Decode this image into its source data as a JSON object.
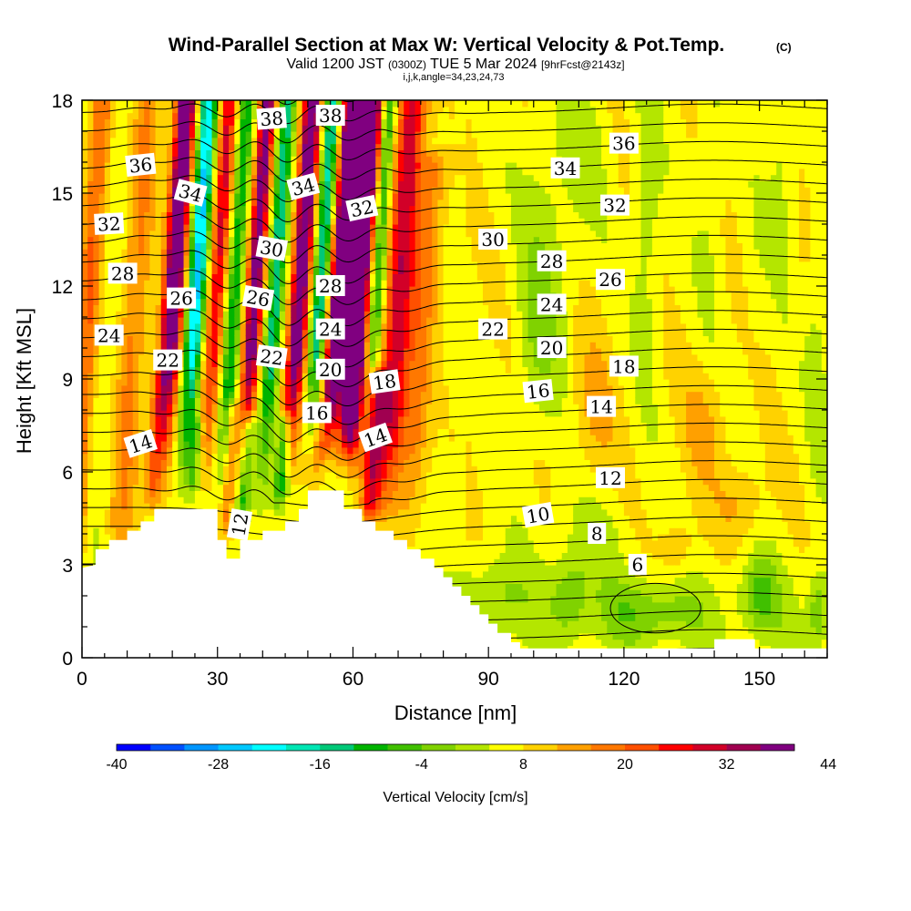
{
  "header": {
    "title": "Wind-Parallel Section at Max W: Vertical Velocity & Pot.Temp.",
    "title_mark": "(C)",
    "valid_prefix": "Valid 1200 JST",
    "valid_utc": "(0300Z)",
    "valid_date": "TUE 5 Mar 2024",
    "forecast": "[9hrFcst@2143z]",
    "indices": "i,j,k,angle=34,23,24,73"
  },
  "chart_data": {
    "type": "heatmap",
    "xlabel": "Distance [nm]",
    "ylabel": "Height [Kft MSL]",
    "xlim": [
      0,
      165
    ],
    "ylim": [
      0,
      18
    ],
    "x_ticks": [
      0,
      30,
      60,
      90,
      120,
      150
    ],
    "y_ticks": [
      0,
      3,
      6,
      9,
      12,
      15,
      18
    ],
    "colorbar": {
      "label": "Vertical Velocity [cm/s]",
      "tick_labels": [
        "-40",
        "-28",
        "-16",
        "-4",
        "8",
        "20",
        "32",
        "44"
      ],
      "tick_values": [
        -40,
        -28,
        -16,
        -4,
        8,
        20,
        32,
        44
      ],
      "min": -40,
      "step": 4,
      "colors": [
        "#0000ff",
        "#0050ff",
        "#0096ff",
        "#00c8ff",
        "#00ffff",
        "#00e6b4",
        "#00c878",
        "#00b400",
        "#40c000",
        "#80d200",
        "#b4e600",
        "#ffff00",
        "#ffd200",
        "#ffa000",
        "#ff7800",
        "#ff5000",
        "#ff0000",
        "#d20028",
        "#a00050",
        "#800080"
      ]
    },
    "terrain": [
      [
        0,
        2.9
      ],
      [
        3,
        3.0
      ],
      [
        3,
        3.5
      ],
      [
        6,
        3.5
      ],
      [
        6,
        3.8
      ],
      [
        10,
        3.8
      ],
      [
        10,
        4.1
      ],
      [
        13,
        4.1
      ],
      [
        13,
        4.4
      ],
      [
        16,
        4.4
      ],
      [
        16,
        4.8
      ],
      [
        30,
        4.8
      ],
      [
        30,
        3.8
      ],
      [
        32,
        3.8
      ],
      [
        32,
        3.2
      ],
      [
        35,
        3.2
      ],
      [
        35,
        3.8
      ],
      [
        40,
        3.8
      ],
      [
        40,
        4.1
      ],
      [
        45,
        4.1
      ],
      [
        45,
        4.4
      ],
      [
        48,
        4.4
      ],
      [
        48,
        4.8
      ],
      [
        50,
        4.8
      ],
      [
        50,
        5.4
      ],
      [
        58,
        5.4
      ],
      [
        58,
        4.8
      ],
      [
        62,
        4.8
      ],
      [
        62,
        4.4
      ],
      [
        65,
        4.4
      ],
      [
        65,
        4.1
      ],
      [
        69,
        4.1
      ],
      [
        69,
        3.8
      ],
      [
        72,
        3.8
      ],
      [
        72,
        3.5
      ],
      [
        75,
        3.5
      ],
      [
        75,
        3.2
      ],
      [
        78,
        3.2
      ],
      [
        78,
        2.9
      ],
      [
        80,
        2.9
      ],
      [
        80,
        2.6
      ],
      [
        82,
        2.6
      ],
      [
        82,
        2.3
      ],
      [
        84,
        2.3
      ],
      [
        84,
        2.0
      ],
      [
        86,
        2.0
      ],
      [
        86,
        1.7
      ],
      [
        88,
        1.7
      ],
      [
        88,
        1.4
      ],
      [
        90,
        1.4
      ],
      [
        90,
        1.1
      ],
      [
        92,
        1.1
      ],
      [
        92,
        0.8
      ],
      [
        95,
        0.8
      ],
      [
        95,
        0.5
      ],
      [
        97,
        0.5
      ],
      [
        97,
        0.3
      ],
      [
        140,
        0.3
      ],
      [
        140,
        0.6
      ],
      [
        149,
        0.6
      ],
      [
        149,
        0.3
      ],
      [
        165,
        0.3
      ]
    ],
    "updrafts": [
      {
        "x": 1.0,
        "w": 14,
        "hw": 2.5,
        "y0": 2.2,
        "y1": 18
      },
      {
        "x": 5.0,
        "w": -3,
        "hw": 3.5,
        "y0": 2.0,
        "y1": 18
      },
      {
        "x": 11.0,
        "w": 10,
        "hw": 3.0,
        "y0": 2.8,
        "y1": 18
      },
      {
        "x": 19.5,
        "w": 40,
        "hw": 2.2,
        "y0": 4.6,
        "y1": 18,
        "ramp": 6.0
      },
      {
        "x": 24.5,
        "w": -32,
        "hw": 2.0,
        "y0": 5.0,
        "y1": 18,
        "ramp": 5.0
      },
      {
        "x": 29.0,
        "w": 22,
        "hw": 1.8,
        "y0": 5.0,
        "y1": 18,
        "ramp": 5.0
      },
      {
        "x": 33.0,
        "w": -18,
        "hw": 1.6,
        "y0": 3.4,
        "y1": 18,
        "ramp": 4.0
      },
      {
        "x": 37.5,
        "w": 34,
        "hw": 1.8,
        "y0": 5.0,
        "y1": 18,
        "ramp": 5.0
      },
      {
        "x": 42.0,
        "w": -22,
        "hw": 1.8,
        "y0": 4.2,
        "y1": 18,
        "ramp": 5.0
      },
      {
        "x": 47.5,
        "w": 38,
        "hw": 2.0,
        "y0": 5.5,
        "y1": 18,
        "ramp": 4.5
      },
      {
        "x": 52.0,
        "w": -24,
        "hw": 1.8,
        "y0": 6.5,
        "y1": 18,
        "ramp": 4.0
      },
      {
        "x": 56.0,
        "w": 40,
        "hw": 2.0,
        "y0": 6.0,
        "y1": 18,
        "ramp": 3.0
      },
      {
        "x": 60.5,
        "w": 46,
        "hw": 2.4,
        "y0": 5.2,
        "y1": 18,
        "ramp": 3.0
      },
      {
        "x": 64.5,
        "w": -18,
        "hw": 1.7,
        "y0": 7.0,
        "y1": 18,
        "ramp": 4.0
      },
      {
        "x": 69.5,
        "w": 24,
        "hw": 3.2,
        "y0": 3.8,
        "y1": 18,
        "ramp": 4.0
      },
      {
        "x": 75.0,
        "w": 10,
        "hw": 3.0,
        "y0": 3.0,
        "y1": 16,
        "ramp": 4.0
      },
      {
        "x": 38.0,
        "w": -16,
        "hw": 1.5,
        "y0": 4.0,
        "y1": 7.5,
        "ramp": 1.0
      },
      {
        "x": 46.0,
        "w": -18,
        "hw": 1.5,
        "y0": 4.5,
        "y1": 7.5,
        "ramp": 1.0
      },
      {
        "x": 26.5,
        "w": -10,
        "hw": 1.5,
        "y0": 4.8,
        "y1": 7.5,
        "ramp": 1.0
      },
      {
        "x": 60.0,
        "w": -8,
        "hw": 1.5,
        "y0": 5.0,
        "y1": 6.5,
        "ramp": 1.0
      },
      {
        "x": 17.5,
        "w": 10,
        "hw": 1.6,
        "y0": 4.5,
        "y1": 9.0,
        "ramp": 1.0
      },
      {
        "x": 34.0,
        "w": 12,
        "hw": 1.6,
        "y0": 3.5,
        "y1": 8.0,
        "ramp": 1.0
      },
      {
        "x": 54.0,
        "w": 8,
        "hw": 1.5,
        "y0": 5.4,
        "y1": 7.0,
        "ramp": 1.0
      },
      {
        "x": 66.0,
        "w": 20,
        "hw": 2.2,
        "y0": 4.0,
        "y1": 9.0,
        "ramp": 1.0
      }
    ],
    "blobs": [
      {
        "x": 103,
        "y": 13.0,
        "sx": 6,
        "sy": 5,
        "w": -6
      },
      {
        "x": 112,
        "y": 16.5,
        "sx": 5,
        "sy": 2.5,
        "w": -4
      },
      {
        "x": 125,
        "y": 14.0,
        "sx": 3,
        "sy": 5,
        "w": -6
      },
      {
        "x": 139,
        "y": 15.5,
        "sx": 3,
        "sy": 5,
        "w": -4
      },
      {
        "x": 155,
        "y": 16.0,
        "sx": 3,
        "sy": 3.5,
        "w": -5
      },
      {
        "x": 163,
        "y": 9.5,
        "sx": 2.5,
        "sy": 4,
        "w": -5
      },
      {
        "x": 149,
        "y": 12.0,
        "sx": 3,
        "sy": 3,
        "w": -2
      },
      {
        "x": 100,
        "y": 10.0,
        "sx": 4,
        "sy": 2.5,
        "w": -4
      },
      {
        "x": 113,
        "y": 8.0,
        "sx": 5,
        "sy": 2.5,
        "w": 6
      },
      {
        "x": 138,
        "y": 7.5,
        "sx": 5,
        "sy": 2.0,
        "w": 6
      },
      {
        "x": 112,
        "y": 4.0,
        "sx": 8,
        "sy": 1.5,
        "w": -4
      },
      {
        "x": 108,
        "y": 2.0,
        "sx": 4,
        "sy": 1.2,
        "w": -9
      },
      {
        "x": 125,
        "y": 1.5,
        "sx": 10,
        "sy": 1.0,
        "w": -8
      },
      {
        "x": 150,
        "y": 2.0,
        "sx": 4,
        "sy": 1.2,
        "w": -10
      },
      {
        "x": 163,
        "y": 1.5,
        "sx": 2,
        "sy": 1.2,
        "w": -9
      },
      {
        "x": 92,
        "y": 2.0,
        "sx": 6,
        "sy": 1.3,
        "w": -6
      },
      {
        "x": 132,
        "y": 3.5,
        "sx": 4,
        "sy": 1.0,
        "w": 6
      },
      {
        "x": 146,
        "y": 5.0,
        "sx": 5,
        "sy": 1.3,
        "w": 6
      }
    ],
    "theta_labels": [
      {
        "text": "38",
        "x": 42,
        "y": 17.4,
        "r": -4
      },
      {
        "text": "38",
        "x": 55,
        "y": 17.5,
        "r": 0
      },
      {
        "text": "36",
        "x": 13,
        "y": 15.9,
        "r": -6
      },
      {
        "text": "36",
        "x": 120,
        "y": 16.6,
        "r": 0
      },
      {
        "text": "34",
        "x": 24,
        "y": 15.0,
        "r": 15
      },
      {
        "text": "34",
        "x": 49,
        "y": 15.2,
        "r": -15
      },
      {
        "text": "34",
        "x": 107,
        "y": 15.8,
        "r": 0
      },
      {
        "text": "32",
        "x": 6,
        "y": 14.0,
        "r": -3
      },
      {
        "text": "32",
        "x": 62,
        "y": 14.5,
        "r": -12
      },
      {
        "text": "32",
        "x": 118,
        "y": 14.6,
        "r": 0
      },
      {
        "text": "30",
        "x": 42,
        "y": 13.2,
        "r": 10
      },
      {
        "text": "30",
        "x": 91,
        "y": 13.5,
        "r": 0
      },
      {
        "text": "28",
        "x": 9,
        "y": 12.4,
        "r": 0
      },
      {
        "text": "28",
        "x": 55,
        "y": 12.0,
        "r": 0
      },
      {
        "text": "28",
        "x": 104,
        "y": 12.8,
        "r": 0
      },
      {
        "text": "26",
        "x": 22,
        "y": 11.6,
        "r": 0
      },
      {
        "text": "26",
        "x": 39,
        "y": 11.6,
        "r": 10
      },
      {
        "text": "26",
        "x": 117,
        "y": 12.2,
        "r": 0
      },
      {
        "text": "24",
        "x": 6,
        "y": 10.4,
        "r": 0
      },
      {
        "text": "24",
        "x": 55,
        "y": 10.6,
        "r": 0
      },
      {
        "text": "24",
        "x": 104,
        "y": 11.4,
        "r": 0
      },
      {
        "text": "22",
        "x": 19,
        "y": 9.6,
        "r": 0
      },
      {
        "text": "22",
        "x": 42,
        "y": 9.7,
        "r": 8
      },
      {
        "text": "22",
        "x": 91,
        "y": 10.6,
        "r": 0
      },
      {
        "text": "20",
        "x": 55,
        "y": 9.3,
        "r": 0
      },
      {
        "text": "20",
        "x": 104,
        "y": 10.0,
        "r": 0
      },
      {
        "text": "18",
        "x": 67,
        "y": 8.9,
        "r": -8
      },
      {
        "text": "18",
        "x": 120,
        "y": 9.4,
        "r": 0
      },
      {
        "text": "16",
        "x": 52,
        "y": 7.9,
        "r": 0
      },
      {
        "text": "16",
        "x": 101,
        "y": 8.6,
        "r": -6
      },
      {
        "text": "14",
        "x": 13,
        "y": 6.9,
        "r": -18
      },
      {
        "text": "14",
        "x": 65,
        "y": 7.1,
        "r": -20
      },
      {
        "text": "14",
        "x": 115,
        "y": 8.1,
        "r": 0
      },
      {
        "text": "12",
        "x": 35,
        "y": 4.3,
        "r": -80
      },
      {
        "text": "12",
        "x": 117,
        "y": 5.8,
        "r": 0
      },
      {
        "text": "10",
        "x": 101,
        "y": 4.6,
        "r": -10
      },
      {
        "text": "8",
        "x": 114,
        "y": 4.0,
        "r": 0
      },
      {
        "text": "6",
        "x": 123,
        "y": 3.0,
        "r": 0
      }
    ]
  }
}
